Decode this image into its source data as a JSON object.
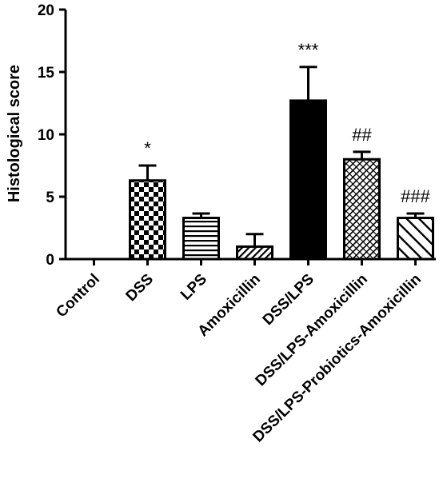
{
  "chart_data": {
    "type": "bar",
    "title": "",
    "xlabel": "",
    "ylabel": "Histological score",
    "ylim": [
      0,
      20
    ],
    "yticks": [
      0,
      5,
      10,
      15,
      20
    ],
    "grid": false,
    "categories": [
      "Control",
      "DSS",
      "LPS",
      "Amoxicillin",
      "DSS/LPS",
      "DSS/LPS-Amoxicillin",
      "DSS/LPS-Probiotics-Amoxicillin"
    ],
    "values": [
      0,
      6.3,
      3.3,
      1.0,
      12.7,
      8.0,
      3.3
    ],
    "errors": [
      0,
      1.2,
      0.35,
      1.0,
      2.7,
      0.6,
      0.35
    ],
    "annotations": [
      "",
      "*",
      "",
      "",
      "***",
      "##",
      "###"
    ],
    "fills": [
      "none",
      "checkerboard",
      "horizontal-lines",
      "diagonal-hatch-dense",
      "solid-black",
      "crosshatch",
      "diagonal-hatch-wide"
    ],
    "colors": {
      "stroke": "#000000",
      "background": "#ffffff"
    }
  }
}
